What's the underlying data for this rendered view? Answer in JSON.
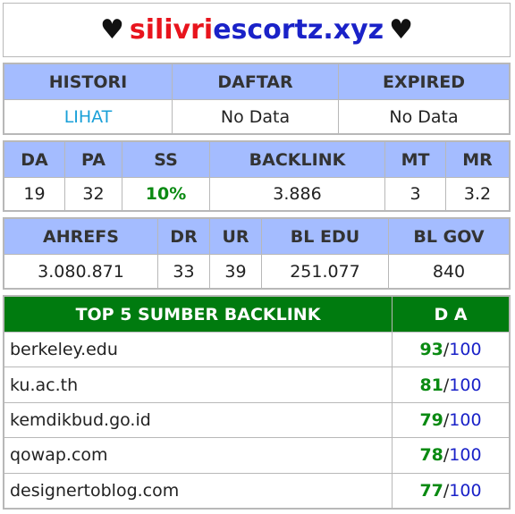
{
  "title": {
    "heart_left": "♥",
    "part1": "silivri",
    "part2": "escortz.xyz",
    "heart_right": "♥"
  },
  "history_table": {
    "headers": [
      "HISTORI",
      "DAFTAR",
      "EXPIRED"
    ],
    "values": [
      "LIHAT",
      "No Data",
      "No Data"
    ]
  },
  "metrics_table": {
    "headers": [
      "DA",
      "PA",
      "SS",
      "BACKLINK",
      "MT",
      "MR"
    ],
    "values": [
      "19",
      "32",
      "10%",
      "3.886",
      "3",
      "3.2"
    ]
  },
  "ahrefs_table": {
    "headers": [
      "AHREFS",
      "DR",
      "UR",
      "BL EDU",
      "BL GOV"
    ],
    "values": [
      "3.080.871",
      "33",
      "39",
      "251.077",
      "840"
    ]
  },
  "backlinks": {
    "header_source": "TOP 5 SUMBER BACKLINK",
    "header_da": "D A",
    "rows": [
      {
        "site": "berkeley.edu",
        "da": "93",
        "max": "100"
      },
      {
        "site": "ku.ac.th",
        "da": "81",
        "max": "100"
      },
      {
        "site": "kemdikbud.go.id",
        "da": "79",
        "max": "100"
      },
      {
        "site": "qowap.com",
        "da": "78",
        "max": "100"
      },
      {
        "site": "designertoblog.com",
        "da": "77",
        "max": "100"
      }
    ]
  },
  "colors": {
    "header_blue": "#a4bcff",
    "header_green": "#007b0f",
    "title_red": "#e8141d",
    "title_blue": "#1a22c8",
    "value_green": "#0a8a12"
  }
}
